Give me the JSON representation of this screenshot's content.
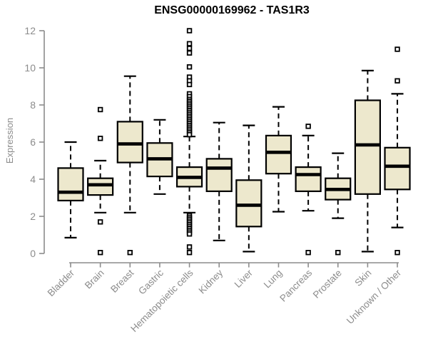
{
  "title": "ENSG00000169962 - TAS1R3",
  "colors": {
    "background": "#ffffff",
    "box_fill": "#ede8cd",
    "box_stroke": "#000000",
    "whisker": "#000000",
    "outlier": "#000000",
    "axis": "#8c8c8c",
    "tick_label": "#8c8c8c",
    "title_text": "#000000"
  },
  "chart_data": {
    "type": "boxplot",
    "title": "ENSG00000169962 - TAS1R3",
    "xlabel": "",
    "ylabel": "Expression",
    "ylim": [
      0,
      12
    ],
    "yticks": [
      0,
      2,
      4,
      6,
      8,
      10,
      12
    ],
    "grid": false,
    "legend": false,
    "categories": [
      "Bladder",
      "Brain",
      "Breast",
      "Gastric",
      "Hematopoietic cells",
      "Kidney",
      "Liver",
      "Lung",
      "Pancreas",
      "Prostate",
      "Skin",
      "Unknown / Other"
    ],
    "series": [
      {
        "name": "Bladder",
        "whisker_low": 0.85,
        "q1": 2.85,
        "median": 3.3,
        "q3": 4.6,
        "whisker_high": 6.0,
        "outliers": []
      },
      {
        "name": "Brain",
        "whisker_low": 2.2,
        "q1": 3.15,
        "median": 3.7,
        "q3": 4.05,
        "whisker_high": 5.0,
        "outliers": [
          7.75,
          6.2,
          1.7,
          0.05
        ]
      },
      {
        "name": "Breast",
        "whisker_low": 2.2,
        "q1": 4.9,
        "median": 5.9,
        "q3": 7.1,
        "whisker_high": 9.55,
        "outliers": [
          0.05
        ]
      },
      {
        "name": "Gastric",
        "whisker_low": 3.2,
        "q1": 4.15,
        "median": 5.1,
        "q3": 5.95,
        "whisker_high": 7.2,
        "outliers": []
      },
      {
        "name": "Hematopoietic cells",
        "whisker_low": 2.2,
        "q1": 3.6,
        "median": 4.1,
        "q3": 4.65,
        "whisker_high": 6.3,
        "outliers": [
          12,
          11.3,
          11.05,
          10.8,
          10.05,
          9.5,
          9.3,
          9.1,
          8.6,
          8.45,
          8.3,
          8.2,
          8.1,
          8.0,
          7.9,
          7.8,
          7.7,
          7.6,
          7.5,
          7.4,
          7.3,
          7.2,
          7.1,
          7.0,
          6.9,
          6.8,
          6.7,
          6.6,
          6.5,
          6.4,
          2.05,
          1.95,
          1.85,
          1.75,
          1.65,
          1.55,
          1.45,
          1.35,
          1.25,
          1.15,
          1.05,
          0.35,
          0.05
        ]
      },
      {
        "name": "Kidney",
        "whisker_low": 0.7,
        "q1": 3.35,
        "median": 4.6,
        "q3": 5.1,
        "whisker_high": 7.05,
        "outliers": []
      },
      {
        "name": "Liver",
        "whisker_low": 0.1,
        "q1": 1.45,
        "median": 2.6,
        "q3": 3.95,
        "whisker_high": 6.9,
        "outliers": []
      },
      {
        "name": "Lung",
        "whisker_low": 2.25,
        "q1": 4.3,
        "median": 5.45,
        "q3": 6.35,
        "whisker_high": 7.9,
        "outliers": []
      },
      {
        "name": "Pancreas",
        "whisker_low": 2.3,
        "q1": 3.35,
        "median": 4.25,
        "q3": 4.65,
        "whisker_high": 6.35,
        "outliers": [
          6.85,
          0.05
        ]
      },
      {
        "name": "Prostate",
        "whisker_low": 1.9,
        "q1": 2.9,
        "median": 3.45,
        "q3": 4.05,
        "whisker_high": 5.4,
        "outliers": [
          0.05
        ]
      },
      {
        "name": "Skin",
        "whisker_low": 0.1,
        "q1": 3.2,
        "median": 5.85,
        "q3": 8.25,
        "whisker_high": 9.85,
        "outliers": []
      },
      {
        "name": "Unknown / Other",
        "whisker_low": 1.4,
        "q1": 3.45,
        "median": 4.7,
        "q3": 5.7,
        "whisker_high": 8.6,
        "outliers": [
          11.0,
          9.3,
          0.05
        ]
      }
    ]
  }
}
